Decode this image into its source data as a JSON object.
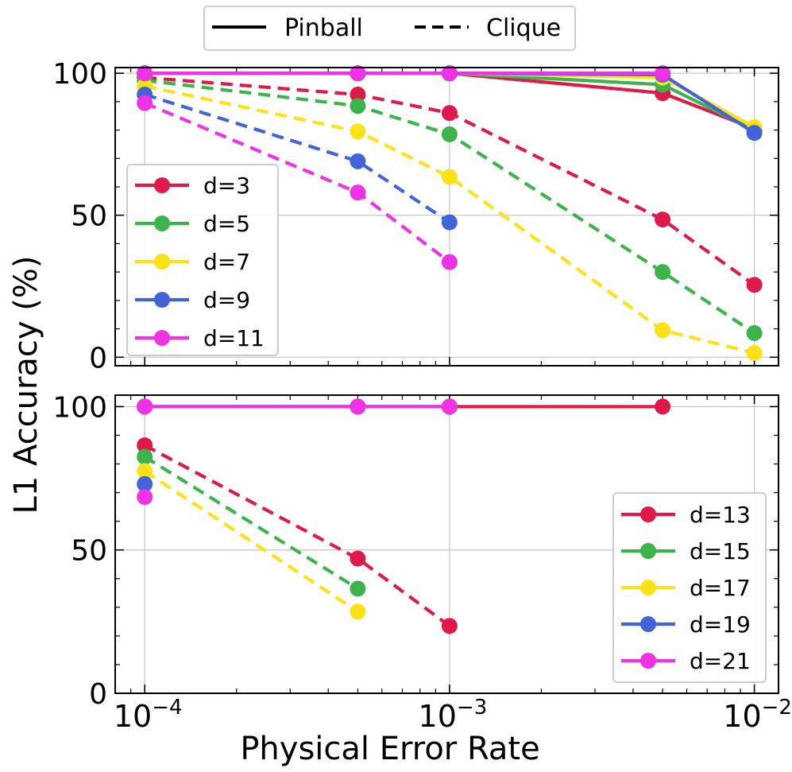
{
  "chart_data": {
    "type": "line",
    "ylabel": "L1 Accuracy (%)",
    "xlabel": "Physical Error Rate",
    "xscale": "log",
    "xlim": [
      8e-05,
      0.012
    ],
    "x_ticks": [
      {
        "value": 0.0001,
        "base": "10",
        "exp": "−4"
      },
      {
        "value": 0.001,
        "base": "10",
        "exp": "−3"
      },
      {
        "value": 0.01,
        "base": "10",
        "exp": "−2"
      }
    ],
    "x": [
      0.0001,
      0.0005,
      0.001,
      0.005,
      0.01
    ],
    "style_legend": [
      {
        "label": "Pinball",
        "style": "solid"
      },
      {
        "label": "Clique",
        "style": "dashed"
      }
    ],
    "legend_position": "top-center",
    "panels": [
      {
        "id": "top",
        "ylim": [
          -3,
          102
        ],
        "yticks": [
          0,
          50,
          100
        ],
        "legend_position": "center-left",
        "series": [
          {
            "name": "d=3",
            "color": "#E0194B",
            "pinball": [
              100,
              100,
              100,
              93,
              80.5
            ],
            "clique": [
              98.5,
              92.5,
              86,
              48.5,
              25.5
            ]
          },
          {
            "name": "d=5",
            "color": "#3CB44B",
            "pinball": [
              100,
              100,
              100,
              96,
              80
            ],
            "clique": [
              97.5,
              88.5,
              78.5,
              30,
              8.5
            ]
          },
          {
            "name": "d=7",
            "color": "#FFE119",
            "pinball": [
              100,
              100,
              100,
              98.5,
              81
            ],
            "clique": [
              95.5,
              79.5,
              63.5,
              9.5,
              1.5
            ]
          },
          {
            "name": "d=9",
            "color": "#4363D8",
            "pinball": [
              100,
              100,
              100,
              99.5,
              79
            ],
            "clique": [
              92.5,
              69,
              47.5,
              null,
              null
            ]
          },
          {
            "name": "d=11",
            "color": "#F032E6",
            "pinball": [
              100,
              100,
              100,
              100,
              null
            ],
            "clique": [
              89.5,
              58,
              33.5,
              null,
              null
            ]
          }
        ]
      },
      {
        "id": "bottom",
        "ylim": [
          0,
          104
        ],
        "yticks": [
          0,
          50,
          100
        ],
        "legend_position": "lower-right",
        "series": [
          {
            "name": "d=13",
            "color": "#E0194B",
            "pinball": [
              100,
              100,
              100,
              100,
              null
            ],
            "clique": [
              86.5,
              47,
              23.5,
              null,
              null
            ]
          },
          {
            "name": "d=15",
            "color": "#3CB44B",
            "pinball": [
              100,
              100,
              100,
              null,
              null
            ],
            "clique": [
              82.5,
              36.5,
              null,
              null,
              null
            ]
          },
          {
            "name": "d=17",
            "color": "#FFE119",
            "pinball": [
              100,
              100,
              100,
              null,
              null
            ],
            "clique": [
              77.5,
              28.5,
              null,
              null,
              null
            ]
          },
          {
            "name": "d=19",
            "color": "#4363D8",
            "pinball": [
              100,
              100,
              100,
              null,
              null
            ],
            "clique": [
              73,
              null,
              null,
              null,
              null
            ]
          },
          {
            "name": "d=21",
            "color": "#F032E6",
            "pinball": [
              100,
              100,
              100,
              null,
              null
            ],
            "clique": [
              68.5,
              null,
              null,
              null,
              null
            ]
          }
        ]
      }
    ]
  }
}
